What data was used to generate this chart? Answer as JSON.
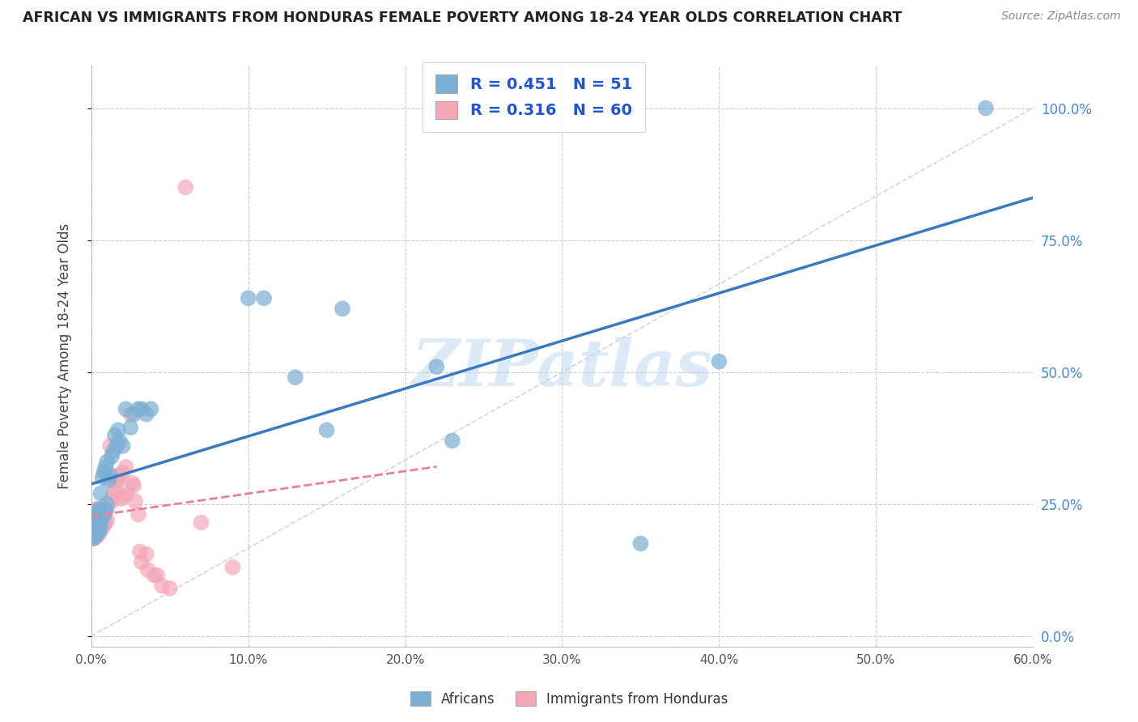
{
  "title": "AFRICAN VS IMMIGRANTS FROM HONDURAS FEMALE POVERTY AMONG 18-24 YEAR OLDS CORRELATION CHART",
  "source": "Source: ZipAtlas.com",
  "ylabel": "Female Poverty Among 18-24 Year Olds",
  "xlim": [
    0.0,
    0.6
  ],
  "ylim": [
    -0.02,
    1.08
  ],
  "x_ticks": [
    0.0,
    0.1,
    0.2,
    0.3,
    0.4,
    0.5,
    0.6
  ],
  "x_tick_labels": [
    "0.0%",
    "10.0%",
    "20.0%",
    "30.0%",
    "40.0%",
    "50.0%",
    "60.0%"
  ],
  "y_ticks": [
    0.0,
    0.25,
    0.5,
    0.75,
    1.0
  ],
  "y_tick_labels": [
    "0.0%",
    "25.0%",
    "50.0%",
    "75.0%",
    "100.0%"
  ],
  "african_color": "#7bafd4",
  "african_line_color": "#3a7abf",
  "honduras_color": "#f4a7b9",
  "honduras_line_color": "#e87fa0",
  "african_R": 0.451,
  "african_N": 51,
  "honduras_R": 0.316,
  "honduras_N": 60,
  "legend_text_color": "#2255cc",
  "background_color": "#ffffff",
  "grid_color": "#cccccc",
  "watermark": "ZIPatlas",
  "watermark_color": "#c0d8ef",
  "ref_line_color": "#cccccc",
  "african_x": [
    0.001,
    0.001,
    0.002,
    0.002,
    0.002,
    0.003,
    0.003,
    0.003,
    0.003,
    0.004,
    0.004,
    0.004,
    0.005,
    0.005,
    0.005,
    0.006,
    0.006,
    0.007,
    0.007,
    0.008,
    0.008,
    0.009,
    0.009,
    0.01,
    0.01,
    0.011,
    0.012,
    0.013,
    0.014,
    0.015,
    0.016,
    0.017,
    0.018,
    0.02,
    0.022,
    0.025,
    0.027,
    0.03,
    0.032,
    0.035,
    0.038,
    0.1,
    0.11,
    0.13,
    0.15,
    0.16,
    0.22,
    0.23,
    0.35,
    0.4,
    0.57
  ],
  "african_y": [
    0.185,
    0.2,
    0.195,
    0.21,
    0.225,
    0.19,
    0.2,
    0.215,
    0.23,
    0.195,
    0.215,
    0.235,
    0.2,
    0.22,
    0.24,
    0.21,
    0.27,
    0.225,
    0.3,
    0.23,
    0.31,
    0.24,
    0.32,
    0.25,
    0.33,
    0.295,
    0.305,
    0.34,
    0.35,
    0.38,
    0.36,
    0.39,
    0.37,
    0.36,
    0.43,
    0.395,
    0.42,
    0.43,
    0.43,
    0.42,
    0.43,
    0.64,
    0.64,
    0.49,
    0.39,
    0.62,
    0.51,
    0.37,
    0.175,
    0.52,
    1.0
  ],
  "honduras_x": [
    0.001,
    0.001,
    0.001,
    0.002,
    0.002,
    0.002,
    0.002,
    0.003,
    0.003,
    0.003,
    0.003,
    0.003,
    0.004,
    0.004,
    0.004,
    0.004,
    0.005,
    0.005,
    0.005,
    0.005,
    0.006,
    0.006,
    0.006,
    0.007,
    0.007,
    0.008,
    0.008,
    0.009,
    0.009,
    0.01,
    0.01,
    0.011,
    0.012,
    0.013,
    0.014,
    0.015,
    0.016,
    0.017,
    0.018,
    0.019,
    0.02,
    0.021,
    0.022,
    0.023,
    0.025,
    0.026,
    0.027,
    0.028,
    0.03,
    0.031,
    0.032,
    0.035,
    0.036,
    0.04,
    0.042,
    0.045,
    0.05,
    0.06,
    0.07,
    0.09
  ],
  "honduras_y": [
    0.185,
    0.195,
    0.21,
    0.185,
    0.195,
    0.21,
    0.225,
    0.19,
    0.2,
    0.215,
    0.23,
    0.24,
    0.19,
    0.2,
    0.22,
    0.24,
    0.195,
    0.21,
    0.225,
    0.24,
    0.2,
    0.215,
    0.23,
    0.205,
    0.22,
    0.21,
    0.23,
    0.215,
    0.235,
    0.22,
    0.24,
    0.3,
    0.36,
    0.255,
    0.27,
    0.28,
    0.295,
    0.295,
    0.305,
    0.26,
    0.31,
    0.265,
    0.32,
    0.27,
    0.42,
    0.29,
    0.285,
    0.255,
    0.23,
    0.16,
    0.14,
    0.155,
    0.125,
    0.115,
    0.115,
    0.095,
    0.09,
    0.85,
    0.215,
    0.13
  ]
}
